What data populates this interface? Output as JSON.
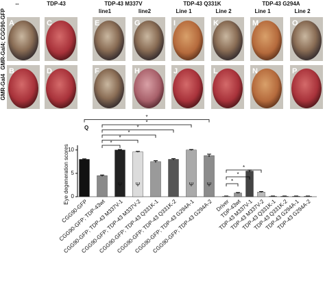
{
  "header": {
    "columns": [
      "--",
      "TDP-43",
      "TDP-43 M337V",
      "TDP-43 Q331K",
      "TDP-43 G294A"
    ],
    "sublabels": [
      "line1",
      "line2",
      "Line 1",
      "Line 2",
      "Line 1",
      "Line 2"
    ]
  },
  "rows": [
    "GMR-Gal4; CGG90-GFP",
    "GMR-Gal4"
  ],
  "panels": {
    "top": [
      "A",
      "C",
      "E",
      "G",
      "I",
      "K",
      "M",
      "O"
    ],
    "bottom": [
      "B",
      "D",
      "F",
      "H",
      "J",
      "L",
      "N",
      "P"
    ]
  },
  "chart_data": {
    "type": "bar",
    "panel": "Q",
    "ylabel": "Eye degeneration scores",
    "categories": [
      "CGG90-GFP",
      "CGG90-GFP; TDP-43wt",
      "CGG90-GFP; TDP-43 M337V-1",
      "CGG90-GFP; TDP-43 M337V-2",
      "CGG90-GFP; TDP-43 Q331K-1",
      "CGG90-GFP; TDP-43 Q331K-2",
      "CGG90-GFP; TDP-43 G294A-1",
      "CGG90-GFP; TDP-43 G294A-2",
      "Driver",
      "TDP-43wt",
      "TDP-43 M337V-1",
      "TDP-43 M337V-2",
      "TDP-43 Q331K-1",
      "TDP-43 Q331K-2",
      "TDP-43 G294A-1",
      "TDP-43 G294A-2"
    ],
    "values": [
      8,
      4.5,
      10,
      9.6,
      7.5,
      8,
      10,
      8.8,
      0.1,
      0.8,
      5.5,
      1,
      0.1,
      0.1,
      0.1,
      0.1
    ],
    "errors": [
      0.1,
      0.15,
      0.1,
      0.1,
      0.2,
      0.15,
      0.1,
      0.3,
      0.05,
      0.1,
      0.2,
      0.1,
      0.05,
      0.05,
      0.05,
      0.05
    ],
    "colors": [
      "#111111",
      "#8a8a8a",
      "#222222",
      "#dcdcdc",
      "#9a9a9a",
      "#555555",
      "#aaaaaa",
      "#8c8c8c",
      "#cccccc",
      "#999999",
      "#444444",
      "#bbbbbb",
      "#888888",
      "#888888",
      "#888888",
      "#888888"
    ],
    "markers": [
      null,
      null,
      "Ψ",
      "Ψ",
      null,
      null,
      "Ψ",
      "Ψ",
      null,
      null,
      null,
      null,
      null,
      null,
      null,
      null
    ],
    "significance": [
      {
        "from": 1,
        "to": 2,
        "label": "*"
      },
      {
        "from": 1,
        "to": 3,
        "label": "*"
      },
      {
        "from": 1,
        "to": 4,
        "label": "*"
      },
      {
        "from": 1,
        "to": 5,
        "label": "*"
      },
      {
        "from": 1,
        "to": 6,
        "label": "*"
      },
      {
        "from": 0,
        "to": 7,
        "label": "*"
      },
      {
        "from": 8,
        "to": 9,
        "label": "*"
      },
      {
        "from": 8,
        "to": 10,
        "label": "*"
      },
      {
        "from": 8,
        "to": 11,
        "label": "*"
      }
    ],
    "ylim": [
      0,
      11
    ],
    "yticks": [
      0,
      5,
      10
    ]
  }
}
